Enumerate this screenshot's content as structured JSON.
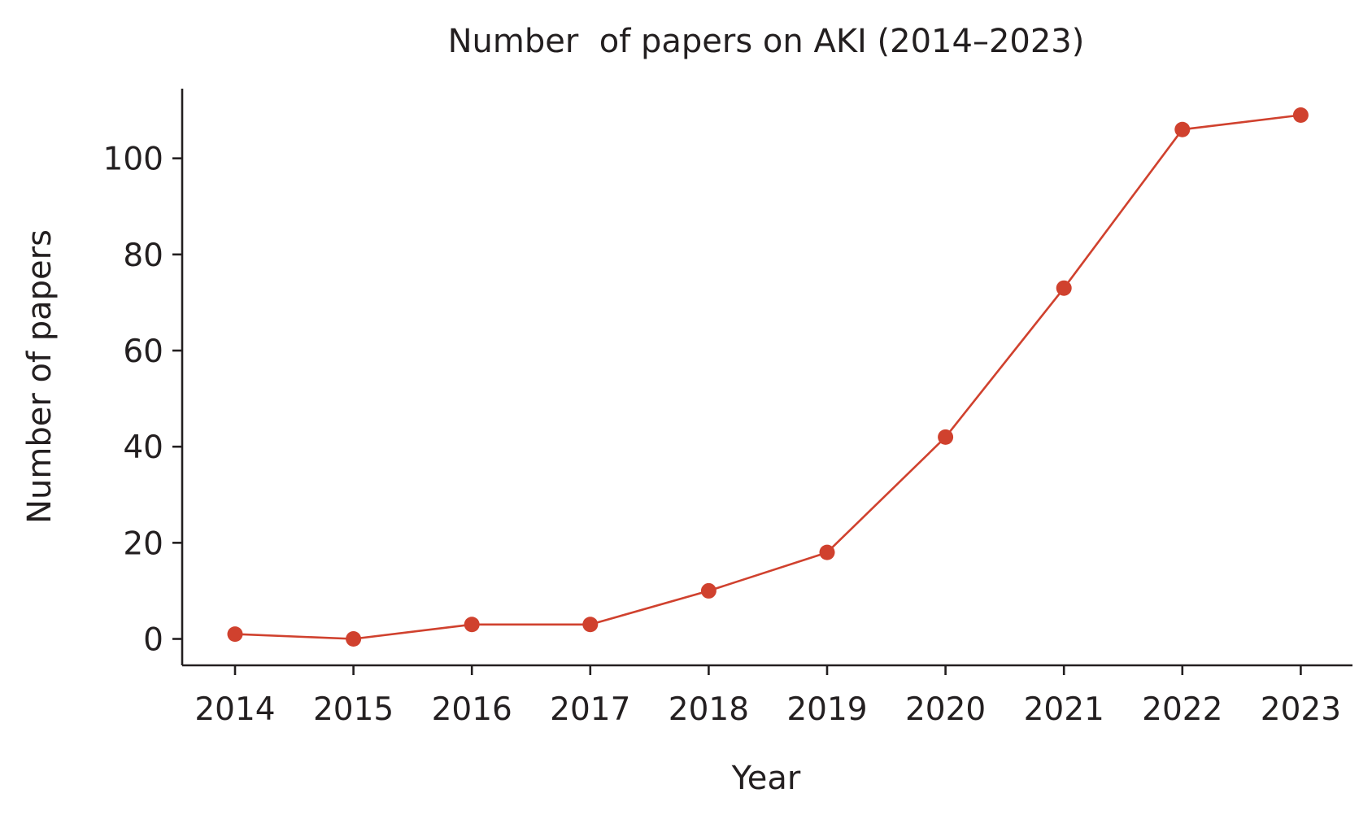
{
  "chart_data": {
    "type": "line",
    "title": "Number  of papers on AKI (2014–2023)",
    "xlabel": "Year",
    "ylabel": "Number of papers",
    "categories": [
      "2014",
      "2015",
      "2016",
      "2017",
      "2018",
      "2019",
      "2020",
      "2021",
      "2022",
      "2023"
    ],
    "series": [
      {
        "values": [
          1,
          0,
          3,
          3,
          10,
          18,
          42,
          73,
          106,
          109
        ],
        "color": "#d0412e"
      }
    ],
    "y_ticks": [
      "0",
      "20",
      "40",
      "60",
      "80",
      "100"
    ],
    "ylim": [
      -5.5,
      114.5
    ],
    "grid": false,
    "legend": "none",
    "markers": "circle"
  }
}
